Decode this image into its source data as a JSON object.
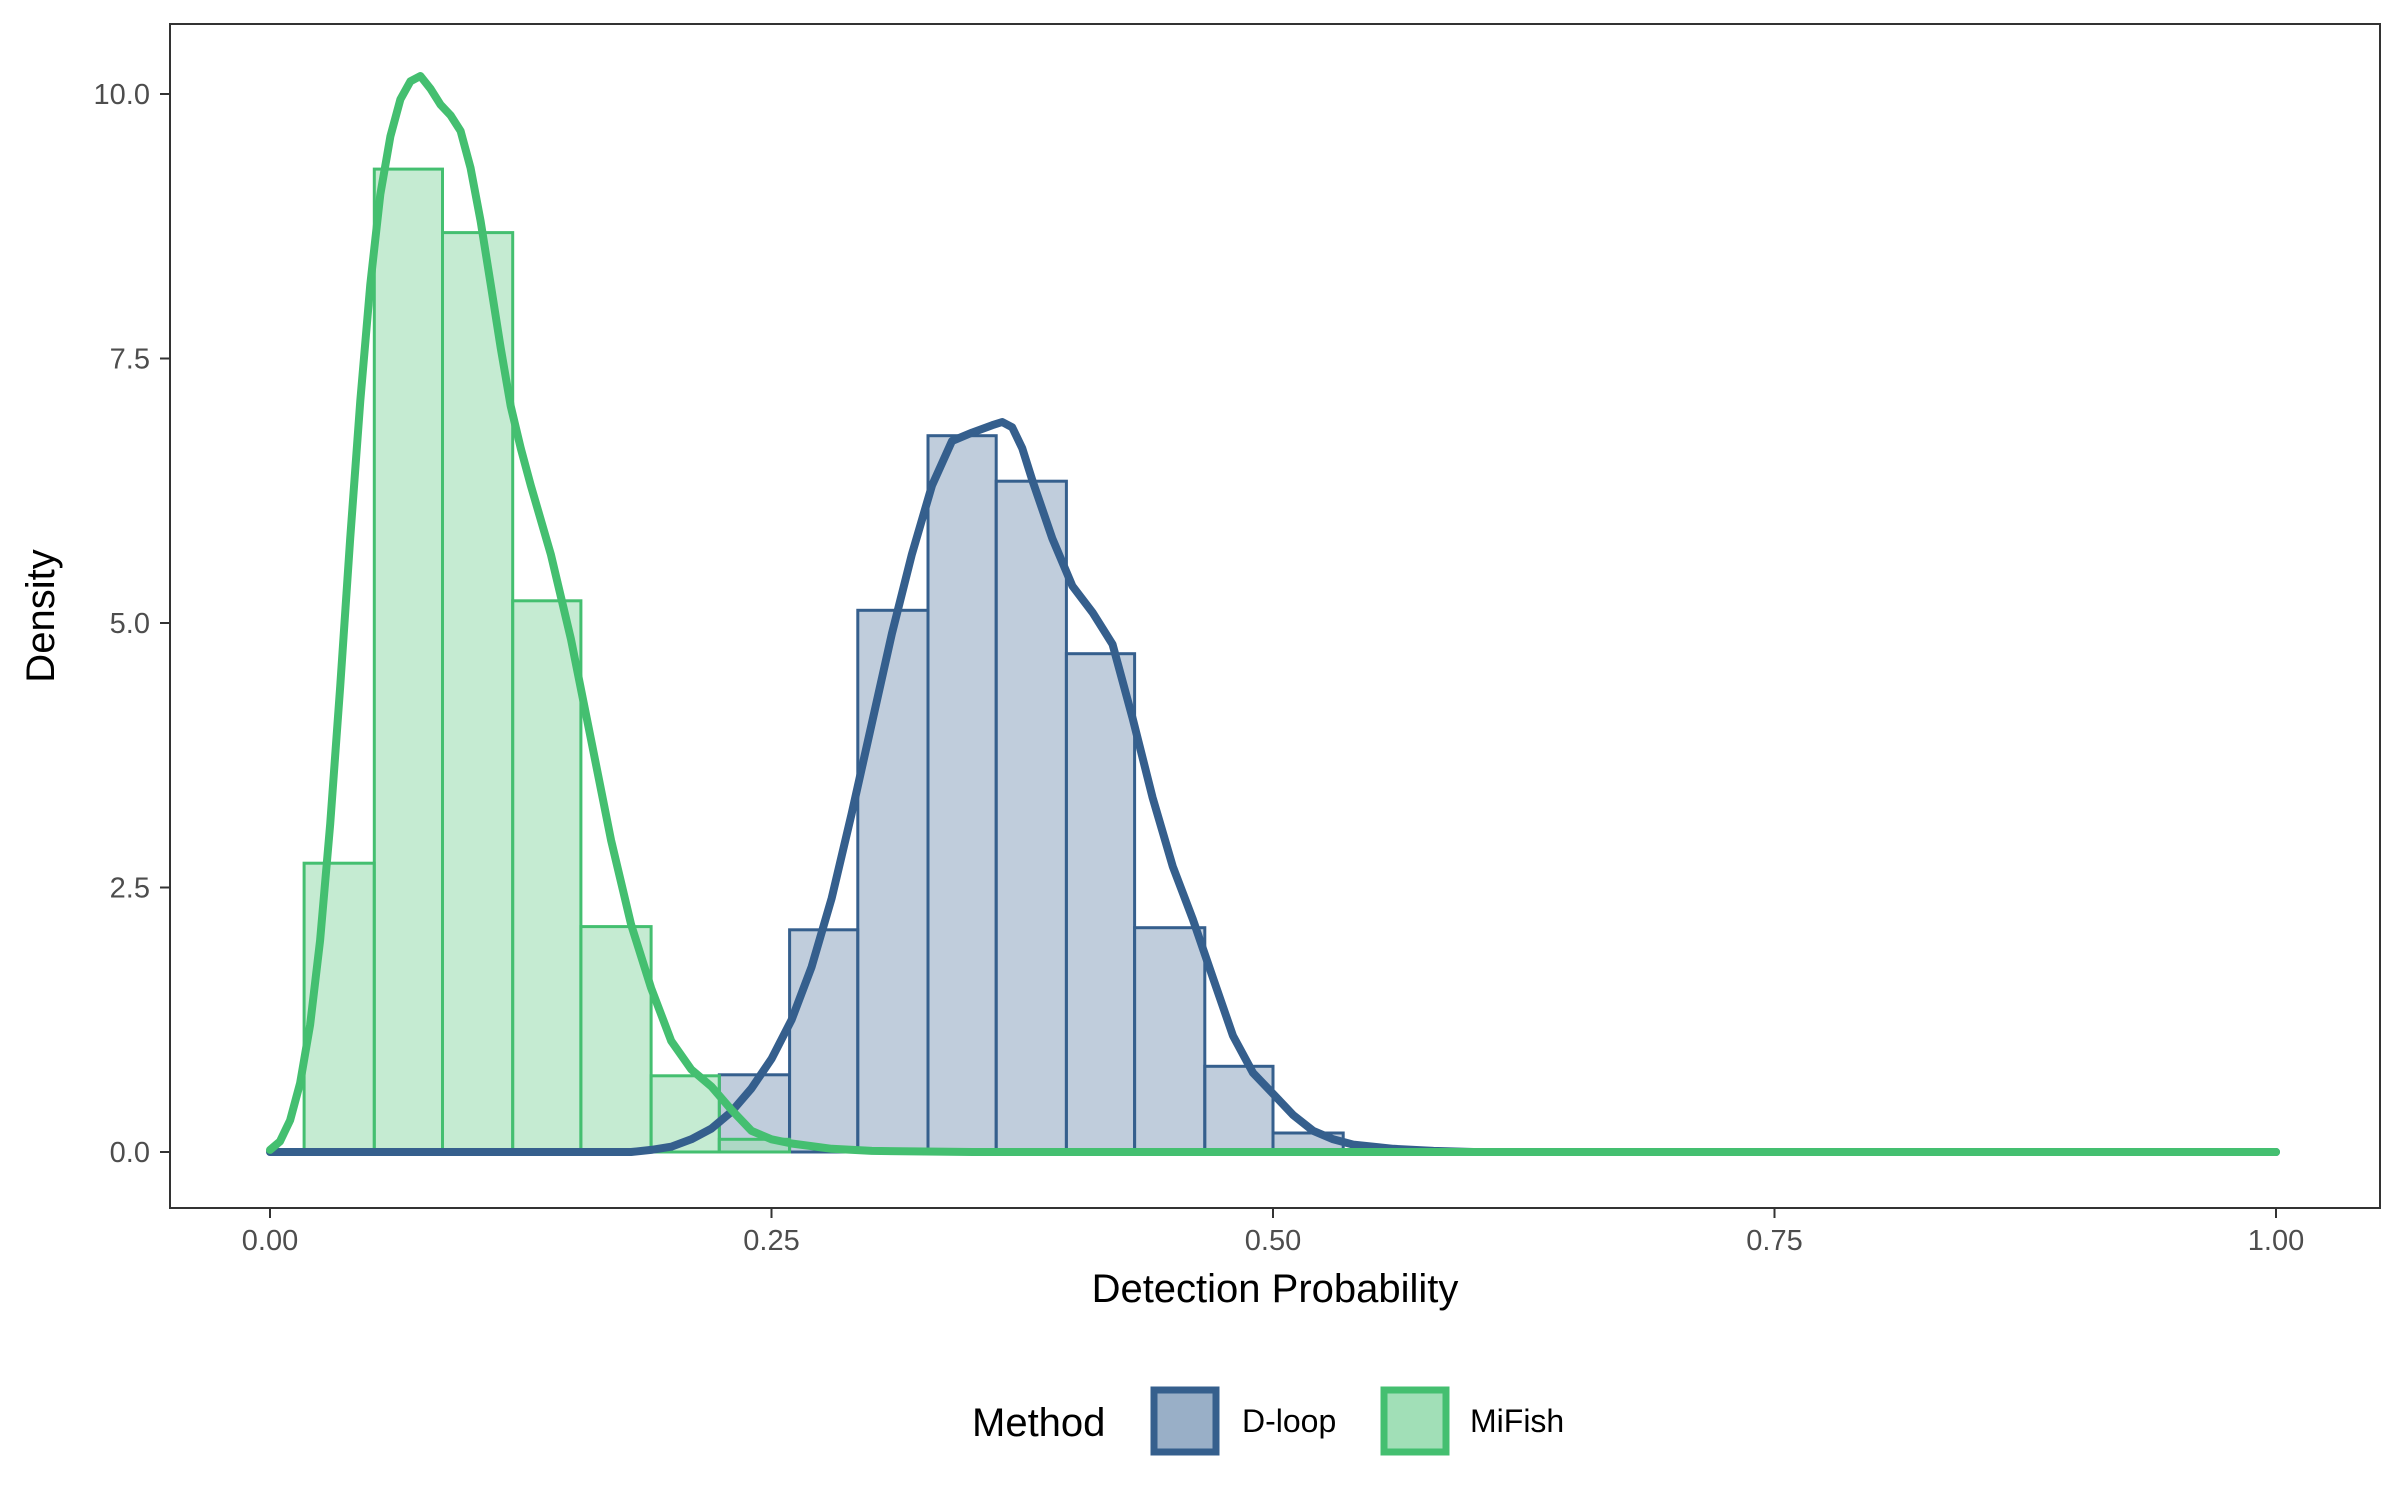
{
  "chart_data": {
    "type": "histogram+density",
    "xlabel": "Detection Probability",
    "ylabel": "Density",
    "xlim": [
      0,
      1
    ],
    "ylim": [
      -0.4,
      10.7
    ],
    "x_ticks": [
      0.0,
      0.25,
      0.5,
      0.75,
      1.0
    ],
    "x_tick_labels": [
      "0.00",
      "0.25",
      "0.50",
      "0.75",
      "1.00"
    ],
    "y_ticks": [
      0.0,
      2.5,
      5.0,
      7.5,
      10.0
    ],
    "y_tick_labels": [
      "0.0",
      "2.5",
      "5.0",
      "7.5",
      "10.0"
    ],
    "grid": false,
    "legend": {
      "title": "Method",
      "position": "bottom",
      "entries": [
        "D-loop",
        "MiFish"
      ]
    },
    "series": [
      {
        "name": "D-loop",
        "color": "#355f8d",
        "fill": "#99afc7",
        "bins": [
          {
            "x0": 0.224,
            "x1": 0.259,
            "density": 0.73
          },
          {
            "x0": 0.259,
            "x1": 0.293,
            "density": 2.1
          },
          {
            "x0": 0.293,
            "x1": 0.328,
            "density": 5.12
          },
          {
            "x0": 0.328,
            "x1": 0.362,
            "density": 6.77
          },
          {
            "x0": 0.362,
            "x1": 0.397,
            "density": 6.34
          },
          {
            "x0": 0.397,
            "x1": 0.431,
            "density": 4.71
          },
          {
            "x0": 0.431,
            "x1": 0.466,
            "density": 2.12
          },
          {
            "x0": 0.466,
            "x1": 0.5,
            "density": 0.81
          },
          {
            "x0": 0.5,
            "x1": 0.535,
            "density": 0.18
          }
        ],
        "density_curve": [
          [
            0.0,
            0.0
          ],
          [
            0.18,
            0.0
          ],
          [
            0.19,
            0.02
          ],
          [
            0.2,
            0.05
          ],
          [
            0.21,
            0.12
          ],
          [
            0.22,
            0.22
          ],
          [
            0.23,
            0.38
          ],
          [
            0.24,
            0.6
          ],
          [
            0.25,
            0.88
          ],
          [
            0.26,
            1.25
          ],
          [
            0.27,
            1.75
          ],
          [
            0.28,
            2.4
          ],
          [
            0.29,
            3.2
          ],
          [
            0.3,
            4.05
          ],
          [
            0.31,
            4.9
          ],
          [
            0.32,
            5.65
          ],
          [
            0.33,
            6.3
          ],
          [
            0.34,
            6.72
          ],
          [
            0.35,
            6.8
          ],
          [
            0.36,
            6.87
          ],
          [
            0.365,
            6.9
          ],
          [
            0.37,
            6.85
          ],
          [
            0.375,
            6.65
          ],
          [
            0.38,
            6.35
          ],
          [
            0.39,
            5.8
          ],
          [
            0.4,
            5.35
          ],
          [
            0.41,
            5.1
          ],
          [
            0.42,
            4.8
          ],
          [
            0.43,
            4.1
          ],
          [
            0.44,
            3.35
          ],
          [
            0.45,
            2.7
          ],
          [
            0.46,
            2.2
          ],
          [
            0.47,
            1.65
          ],
          [
            0.48,
            1.1
          ],
          [
            0.49,
            0.75
          ],
          [
            0.5,
            0.55
          ],
          [
            0.51,
            0.35
          ],
          [
            0.52,
            0.2
          ],
          [
            0.53,
            0.12
          ],
          [
            0.54,
            0.07
          ],
          [
            0.56,
            0.03
          ],
          [
            0.58,
            0.01
          ],
          [
            0.6,
            0.0
          ],
          [
            1.0,
            0.0
          ]
        ]
      },
      {
        "name": "MiFish",
        "color": "#44bf70",
        "fill": "#a1dfb7",
        "bins": [
          {
            "x0": 0.017,
            "x1": 0.052,
            "density": 2.73
          },
          {
            "x0": 0.052,
            "x1": 0.086,
            "density": 9.29
          },
          {
            "x0": 0.086,
            "x1": 0.121,
            "density": 8.69
          },
          {
            "x0": 0.121,
            "x1": 0.155,
            "density": 5.21
          },
          {
            "x0": 0.155,
            "x1": 0.19,
            "density": 2.13
          },
          {
            "x0": 0.19,
            "x1": 0.224,
            "density": 0.72
          },
          {
            "x0": 0.224,
            "x1": 0.259,
            "density": 0.12
          }
        ],
        "density_curve": [
          [
            0.0,
            0.02
          ],
          [
            0.005,
            0.1
          ],
          [
            0.01,
            0.3
          ],
          [
            0.015,
            0.65
          ],
          [
            0.02,
            1.2
          ],
          [
            0.025,
            2.0
          ],
          [
            0.03,
            3.1
          ],
          [
            0.035,
            4.4
          ],
          [
            0.04,
            5.8
          ],
          [
            0.045,
            7.1
          ],
          [
            0.05,
            8.2
          ],
          [
            0.055,
            9.05
          ],
          [
            0.06,
            9.6
          ],
          [
            0.065,
            9.95
          ],
          [
            0.07,
            10.12
          ],
          [
            0.075,
            10.17
          ],
          [
            0.08,
            10.05
          ],
          [
            0.085,
            9.9
          ],
          [
            0.09,
            9.8
          ],
          [
            0.095,
            9.65
          ],
          [
            0.1,
            9.3
          ],
          [
            0.105,
            8.8
          ],
          [
            0.11,
            8.2
          ],
          [
            0.115,
            7.6
          ],
          [
            0.12,
            7.05
          ],
          [
            0.125,
            6.65
          ],
          [
            0.13,
            6.3
          ],
          [
            0.14,
            5.65
          ],
          [
            0.15,
            4.85
          ],
          [
            0.16,
            3.9
          ],
          [
            0.17,
            2.95
          ],
          [
            0.18,
            2.15
          ],
          [
            0.19,
            1.55
          ],
          [
            0.2,
            1.05
          ],
          [
            0.21,
            0.78
          ],
          [
            0.22,
            0.62
          ],
          [
            0.23,
            0.4
          ],
          [
            0.24,
            0.2
          ],
          [
            0.25,
            0.12
          ],
          [
            0.26,
            0.08
          ],
          [
            0.28,
            0.03
          ],
          [
            0.3,
            0.01
          ],
          [
            0.35,
            0.0
          ],
          [
            1.0,
            0.0
          ]
        ]
      }
    ]
  }
}
